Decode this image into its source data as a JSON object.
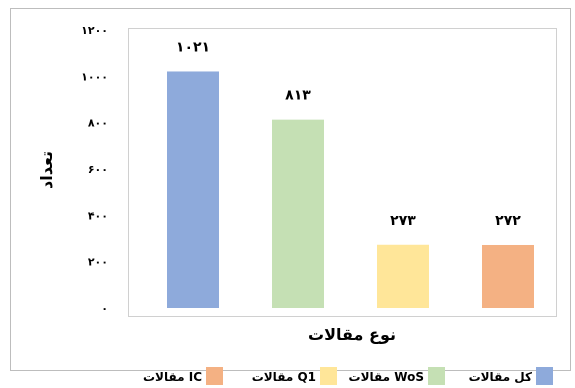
{
  "chart_data": {
    "type": "bar",
    "categories": [
      "کل مقالات",
      "مقالات WoS",
      "مقالات Q1",
      "مقالات IC"
    ],
    "values": [
      1021,
      813,
      273,
      272
    ],
    "value_labels": [
      "۱۰۲۱",
      "۸۱۳",
      "۲۷۳",
      "۲۷۲"
    ],
    "colors": [
      "#8eaadb",
      "#c5e0b4",
      "#ffe699",
      "#f4b183"
    ],
    "xlabel": "نوع مقالات",
    "ylabel": "تعداد",
    "ylim": [
      0,
      1200
    ],
    "yticks": [
      0,
      200,
      400,
      600,
      800,
      1000,
      1200
    ],
    "ytick_labels": [
      "۰",
      "۲۰۰",
      "۴۰۰",
      "۶۰۰",
      "۸۰۰",
      "۱۰۰۰",
      "۱۲۰۰"
    ],
    "grid": false,
    "legend_position": "bottom"
  }
}
